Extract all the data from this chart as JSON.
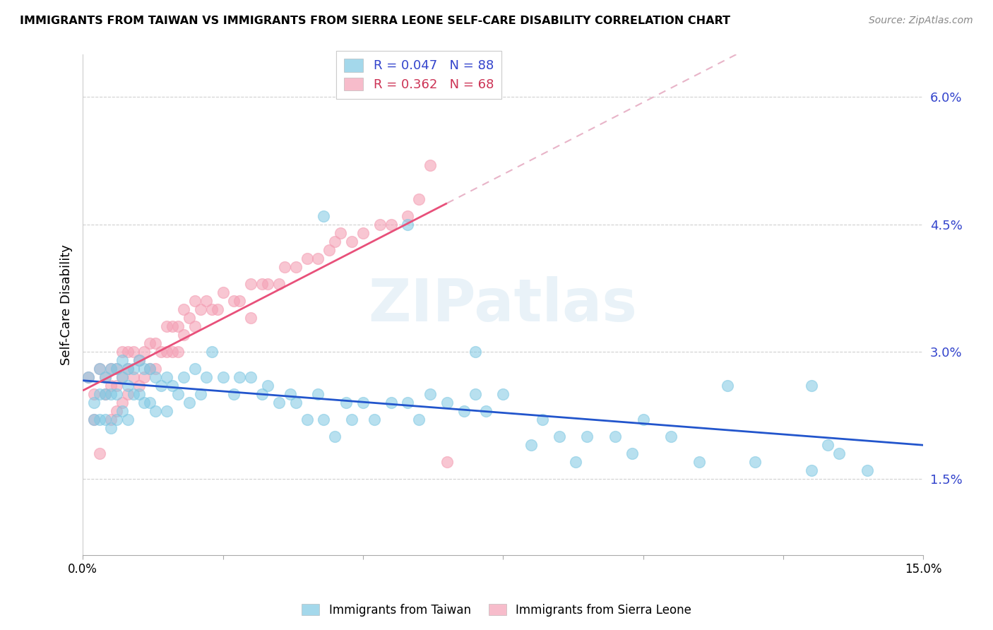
{
  "title": "IMMIGRANTS FROM TAIWAN VS IMMIGRANTS FROM SIERRA LEONE SELF-CARE DISABILITY CORRELATION CHART",
  "source": "Source: ZipAtlas.com",
  "ylabel": "Self-Care Disability",
  "taiwan_color": "#7ec8e3",
  "sierra_leone_color": "#f4a0b5",
  "taiwan_line_color": "#2255cc",
  "sl_line_color": "#e8507a",
  "sl_dash_color": "#e8b4c8",
  "taiwan_R": 0.047,
  "taiwan_N": 88,
  "sierra_leone_R": 0.362,
  "sierra_leone_N": 68,
  "legend_taiwan_label": "Immigrants from Taiwan",
  "legend_sl_label": "Immigrants from Sierra Leone",
  "watermark": "ZIPatlas",
  "xmin": 0.0,
  "xmax": 0.15,
  "ymin": 0.006,
  "ymax": 0.065,
  "ytick_vals": [
    0.015,
    0.03,
    0.045,
    0.06
  ],
  "ytick_labels": [
    "1.5%",
    "3.0%",
    "4.5%",
    "6.0%"
  ],
  "taiwan_x": [
    0.001,
    0.002,
    0.002,
    0.003,
    0.003,
    0.003,
    0.004,
    0.004,
    0.004,
    0.005,
    0.005,
    0.005,
    0.006,
    0.006,
    0.006,
    0.007,
    0.007,
    0.007,
    0.008,
    0.008,
    0.008,
    0.009,
    0.009,
    0.01,
    0.01,
    0.011,
    0.011,
    0.012,
    0.012,
    0.013,
    0.013,
    0.014,
    0.015,
    0.015,
    0.016,
    0.017,
    0.018,
    0.019,
    0.02,
    0.021,
    0.022,
    0.023,
    0.025,
    0.027,
    0.028,
    0.03,
    0.032,
    0.033,
    0.035,
    0.037,
    0.038,
    0.04,
    0.042,
    0.043,
    0.045,
    0.047,
    0.048,
    0.05,
    0.052,
    0.055,
    0.058,
    0.06,
    0.062,
    0.065,
    0.068,
    0.07,
    0.072,
    0.075,
    0.08,
    0.082,
    0.085,
    0.088,
    0.09,
    0.095,
    0.098,
    0.1,
    0.105,
    0.11,
    0.12,
    0.13,
    0.133,
    0.135,
    0.14,
    0.043,
    0.058,
    0.07,
    0.115,
    0.13
  ],
  "taiwan_y": [
    0.027,
    0.024,
    0.022,
    0.028,
    0.025,
    0.022,
    0.027,
    0.025,
    0.022,
    0.028,
    0.025,
    0.021,
    0.028,
    0.025,
    0.022,
    0.029,
    0.027,
    0.023,
    0.028,
    0.026,
    0.022,
    0.028,
    0.025,
    0.029,
    0.025,
    0.028,
    0.024,
    0.028,
    0.024,
    0.027,
    0.023,
    0.026,
    0.027,
    0.023,
    0.026,
    0.025,
    0.027,
    0.024,
    0.028,
    0.025,
    0.027,
    0.03,
    0.027,
    0.025,
    0.027,
    0.027,
    0.025,
    0.026,
    0.024,
    0.025,
    0.024,
    0.022,
    0.025,
    0.022,
    0.02,
    0.024,
    0.022,
    0.024,
    0.022,
    0.024,
    0.024,
    0.022,
    0.025,
    0.024,
    0.023,
    0.025,
    0.023,
    0.025,
    0.019,
    0.022,
    0.02,
    0.017,
    0.02,
    0.02,
    0.018,
    0.022,
    0.02,
    0.017,
    0.017,
    0.016,
    0.019,
    0.018,
    0.016,
    0.046,
    0.045,
    0.03,
    0.026,
    0.026
  ],
  "sl_x": [
    0.001,
    0.002,
    0.002,
    0.003,
    0.003,
    0.004,
    0.004,
    0.005,
    0.005,
    0.005,
    0.006,
    0.006,
    0.006,
    0.007,
    0.007,
    0.007,
    0.008,
    0.008,
    0.008,
    0.009,
    0.009,
    0.01,
    0.01,
    0.011,
    0.011,
    0.012,
    0.012,
    0.013,
    0.013,
    0.014,
    0.015,
    0.015,
    0.016,
    0.016,
    0.017,
    0.017,
    0.018,
    0.018,
    0.019,
    0.02,
    0.02,
    0.021,
    0.022,
    0.023,
    0.024,
    0.025,
    0.027,
    0.028,
    0.03,
    0.03,
    0.032,
    0.033,
    0.035,
    0.036,
    0.038,
    0.04,
    0.042,
    0.044,
    0.045,
    0.046,
    0.048,
    0.05,
    0.053,
    0.055,
    0.058,
    0.06,
    0.062,
    0.065
  ],
  "sl_y": [
    0.027,
    0.025,
    0.022,
    0.028,
    0.018,
    0.027,
    0.025,
    0.028,
    0.026,
    0.022,
    0.028,
    0.026,
    0.023,
    0.03,
    0.027,
    0.024,
    0.03,
    0.028,
    0.025,
    0.03,
    0.027,
    0.029,
    0.026,
    0.03,
    0.027,
    0.031,
    0.028,
    0.031,
    0.028,
    0.03,
    0.033,
    0.03,
    0.033,
    0.03,
    0.033,
    0.03,
    0.035,
    0.032,
    0.034,
    0.036,
    0.033,
    0.035,
    0.036,
    0.035,
    0.035,
    0.037,
    0.036,
    0.036,
    0.038,
    0.034,
    0.038,
    0.038,
    0.038,
    0.04,
    0.04,
    0.041,
    0.041,
    0.042,
    0.043,
    0.044,
    0.043,
    0.044,
    0.045,
    0.045,
    0.046,
    0.048,
    0.052,
    0.017
  ]
}
